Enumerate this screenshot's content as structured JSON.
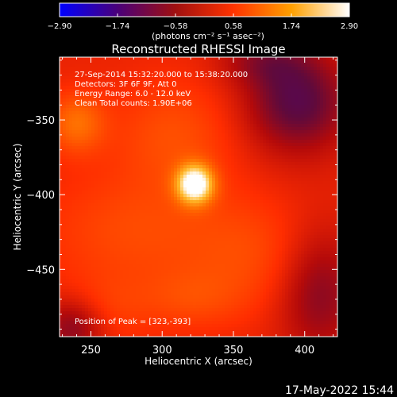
{
  "chart_data": {
    "type": "heatmap",
    "title": "Reconstructed RHESSI Image",
    "colorbar": {
      "min": -2.9,
      "max": 2.9,
      "ticks": [
        "-2.90",
        "-1.74",
        "-0.58",
        "0.58",
        "1.74",
        "2.90"
      ],
      "label": "(photons cm⁻² s⁻¹ asec⁻²)",
      "colors": [
        "#0000ff",
        "#4a007a",
        "#a01010",
        "#ff3300",
        "#ffa000",
        "#ffffff"
      ]
    },
    "xlabel": "Heliocentric X (arcsec)",
    "ylabel": "Heliocentric Y (arcsec)",
    "xlim": [
      228,
      423
    ],
    "ylim": [
      -495,
      -308
    ],
    "xticks": [
      250,
      300,
      350,
      400
    ],
    "xtick_labels": [
      "250",
      "300",
      "350",
      "400"
    ],
    "yticks": [
      -350,
      -400,
      -450
    ],
    "ytick_labels": [
      "-350",
      "-400",
      "-450"
    ],
    "annotations": [
      "27-Sep-2014 15:32:20.000 to 15:38:20.000",
      "Detectors: 3F 6F 9F, Att 0",
      "Energy Range: 6.0 - 12.0 keV",
      "Clean    Total counts: 1.90E+06"
    ],
    "peak_label": "Position of Peak = [323,-393]",
    "peak": {
      "x": 323,
      "y": -393
    },
    "features": [
      {
        "x": 323,
        "y": -393,
        "sx": 9,
        "sy": 9,
        "amp": 2.9
      },
      {
        "x": 308,
        "y": -360,
        "sx": 30,
        "sy": 26,
        "amp": 0.6
      },
      {
        "x": 240,
        "y": -352,
        "sx": 14,
        "sy": 14,
        "amp": 1.0
      },
      {
        "x": 280,
        "y": -425,
        "sx": 45,
        "sy": 28,
        "amp": 0.55
      },
      {
        "x": 362,
        "y": -440,
        "sx": 32,
        "sy": 26,
        "amp": 0.5
      },
      {
        "x": 258,
        "y": -478,
        "sx": 22,
        "sy": 16,
        "amp": 0.4
      },
      {
        "x": 320,
        "y": -470,
        "sx": 26,
        "sy": 14,
        "amp": 0.45
      },
      {
        "x": 395,
        "y": -338,
        "sx": 26,
        "sy": 24,
        "amp": -1.3
      },
      {
        "x": 238,
        "y": -488,
        "sx": 16,
        "sy": 14,
        "amp": -1.0
      },
      {
        "x": 410,
        "y": -465,
        "sx": 20,
        "sy": 30,
        "amp": -0.9
      },
      {
        "x": 370,
        "y": -310,
        "sx": 22,
        "sy": 12,
        "amp": -0.6
      }
    ],
    "background_level": 0.25
  },
  "footer": {
    "date": "17-May-2022 15:44"
  }
}
